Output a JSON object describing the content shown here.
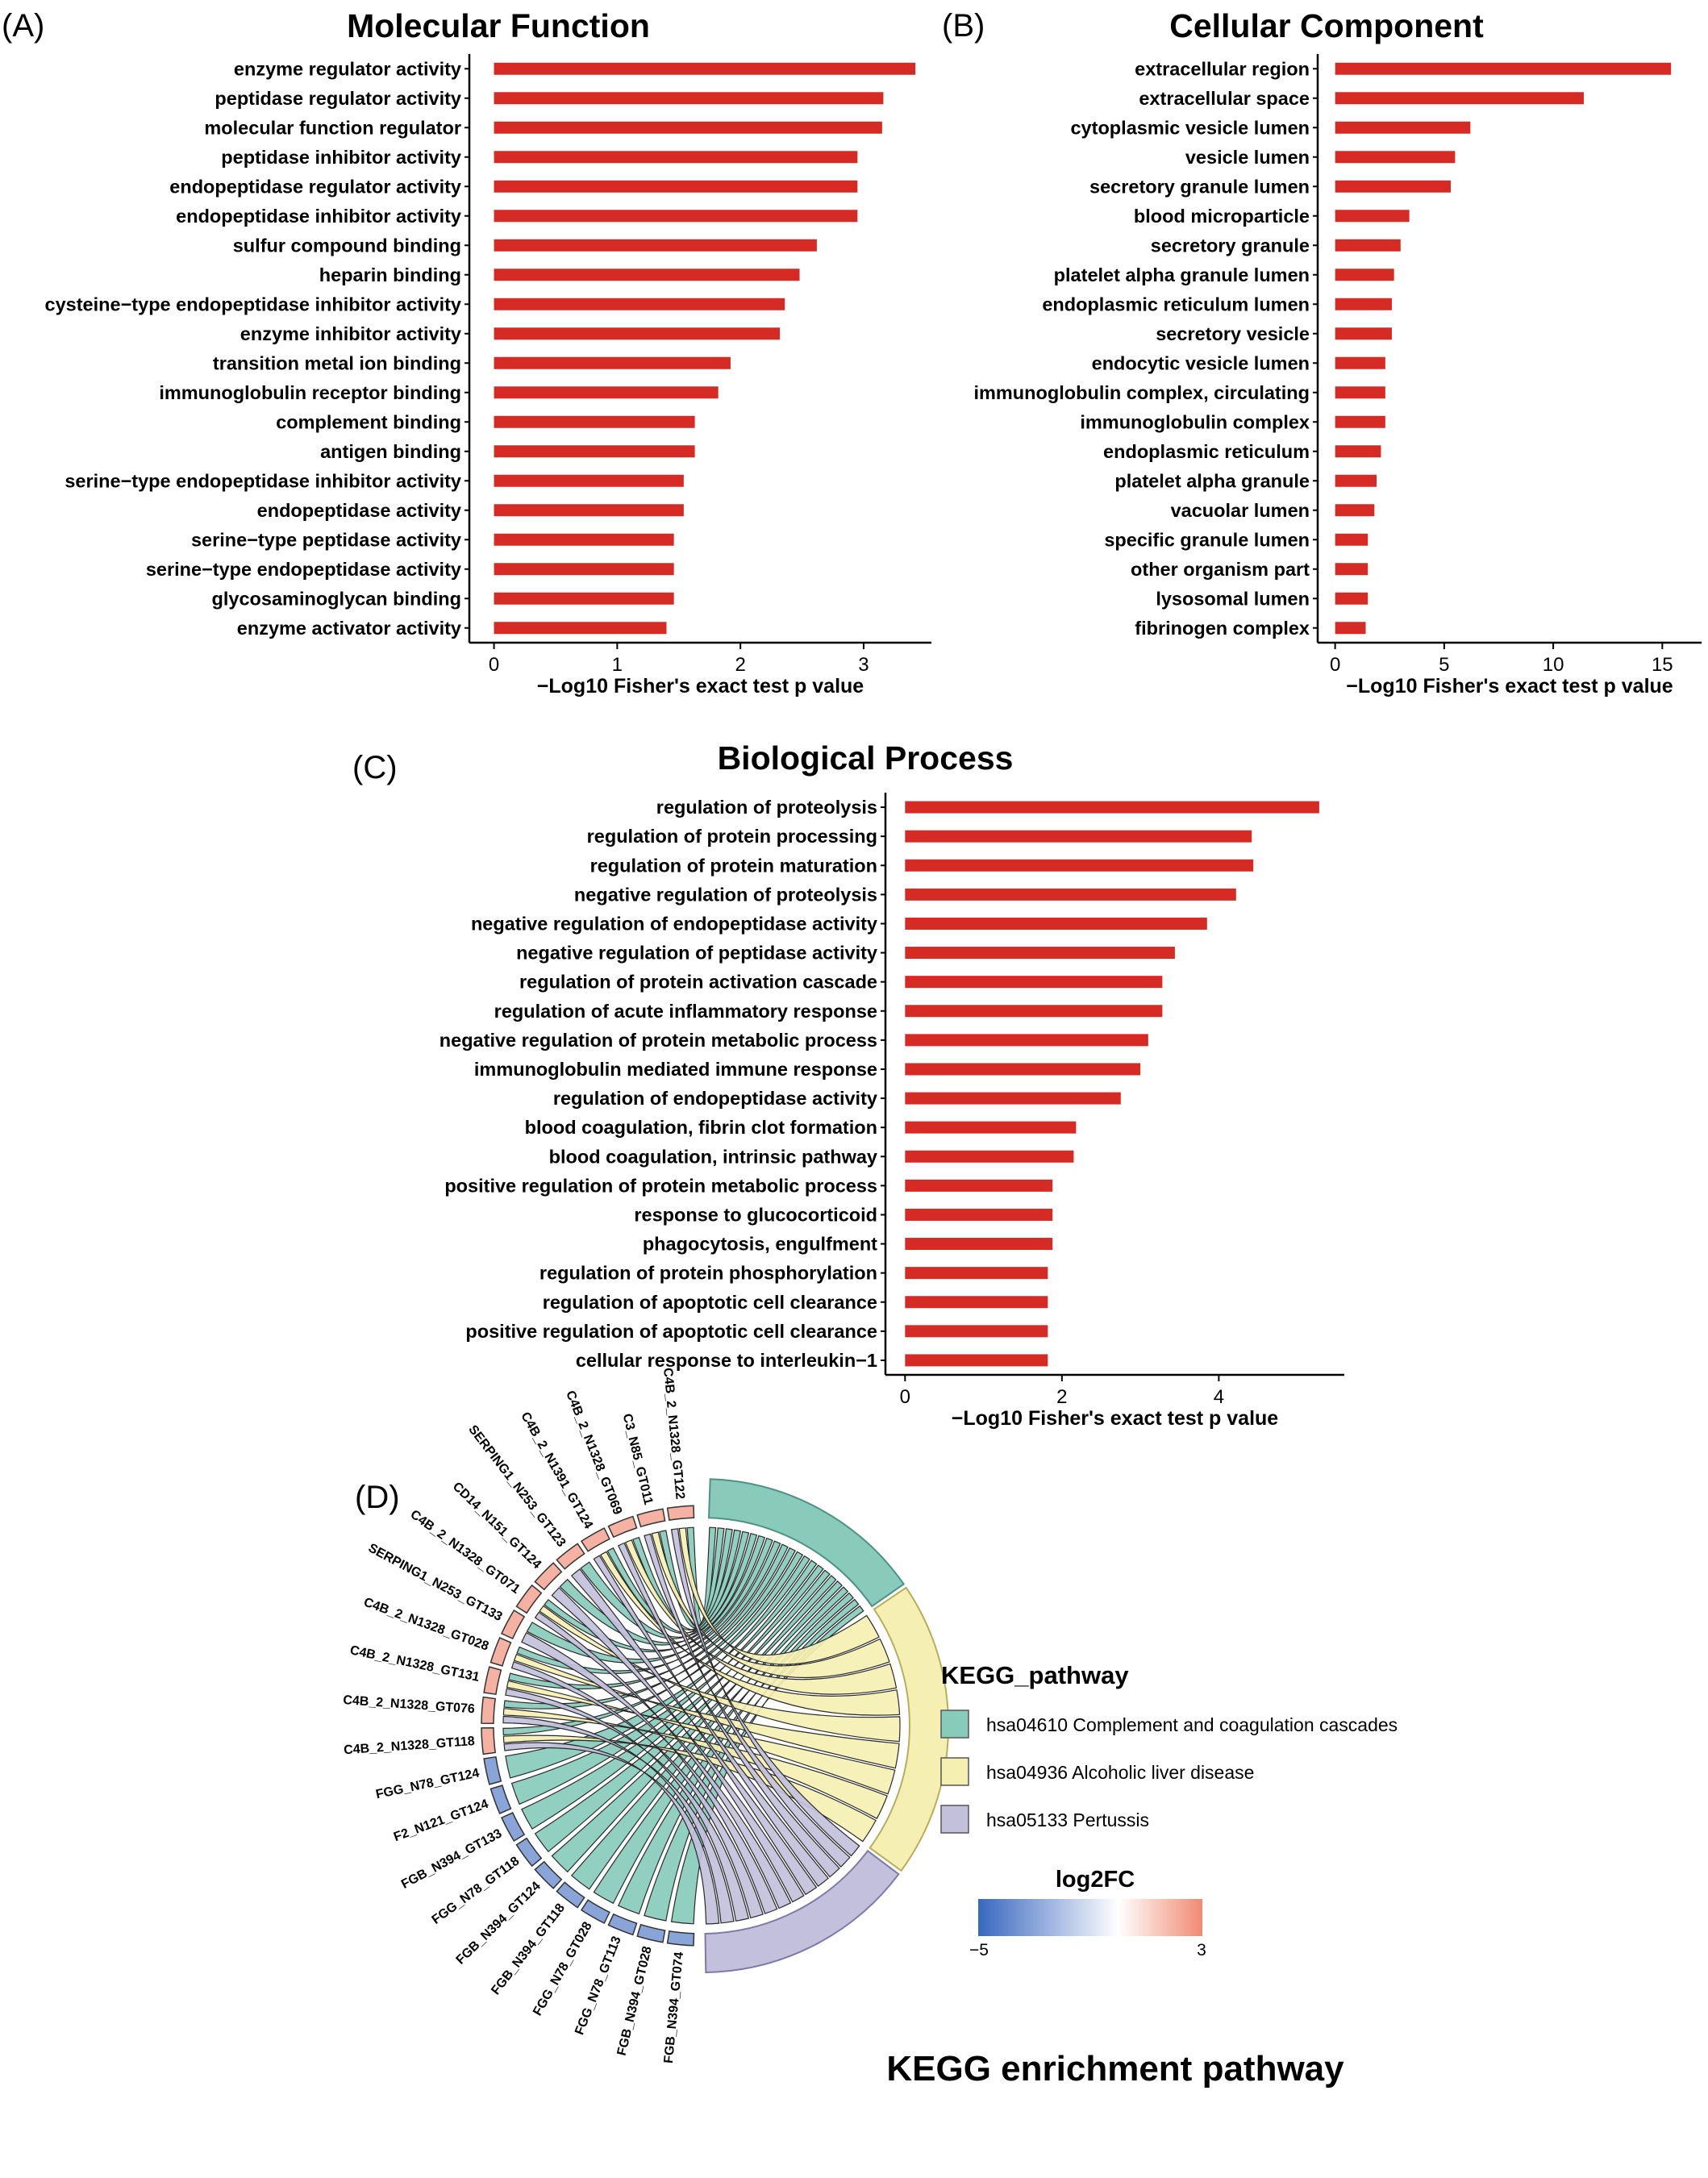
{
  "panels": {
    "a": "(A)",
    "b": "(B)",
    "c": "(C)",
    "d": "(D)"
  },
  "colors": {
    "bar": "#d52b24",
    "complement": "#88cbbb",
    "alcoholic": "#f5f0b2",
    "pertussis": "#c3c0dc",
    "fc_low": "#3967c0",
    "fc_mid": "#ffffff",
    "fc_high": "#f08a72"
  },
  "chart_data": [
    {
      "type": "bar",
      "orientation": "horizontal",
      "title": "Molecular Function",
      "xlabel": "−Log10 Fisher's exact test p value",
      "xlim": [
        -0.2,
        3.55
      ],
      "xticks": [
        0,
        1,
        2,
        3
      ],
      "grid": false,
      "categories": [
        "enzyme regulator activity",
        "peptidase regulator activity",
        "molecular function regulator",
        "peptidase inhibitor activity",
        "endopeptidase regulator activity",
        "endopeptidase inhibitor activity",
        "sulfur compound binding",
        "heparin binding",
        "cysteine−type endopeptidase inhibitor activity",
        "enzyme inhibitor activity",
        "transition metal ion binding",
        "immunoglobulin receptor binding",
        "complement binding",
        "antigen binding",
        "serine−type endopeptidase inhibitor activity",
        "endopeptidase activity",
        "serine−type peptidase activity",
        "serine−type endopeptidase activity",
        "glycosaminoglycan binding",
        "enzyme activator activity"
      ],
      "values": [
        3.42,
        3.16,
        3.15,
        2.95,
        2.95,
        2.95,
        2.62,
        2.48,
        2.36,
        2.32,
        1.92,
        1.82,
        1.63,
        1.63,
        1.54,
        1.54,
        1.46,
        1.46,
        1.46,
        1.4
      ]
    },
    {
      "type": "bar",
      "orientation": "horizontal",
      "title": "Cellular Component",
      "xlabel": "−Log10 Fisher's exact test p value",
      "xlim": [
        -0.8,
        16.8
      ],
      "xticks": [
        0,
        5,
        10,
        15
      ],
      "grid": false,
      "categories": [
        "extracellular region",
        "extracellular space",
        "cytoplasmic vesicle lumen",
        "vesicle lumen",
        "secretory granule lumen",
        "blood microparticle",
        "secretory granule",
        "platelet alpha granule lumen",
        "endoplasmic reticulum lumen",
        "secretory vesicle",
        "endocytic vesicle lumen",
        "immunoglobulin complex, circulating",
        "immunoglobulin complex",
        "endoplasmic reticulum",
        "platelet alpha granule",
        "vacuolar lumen",
        "specific granule lumen",
        "other organism part",
        "lysosomal lumen",
        "fibrinogen complex"
      ],
      "values": [
        15.4,
        11.4,
        6.2,
        5.5,
        5.3,
        3.4,
        3.0,
        2.7,
        2.6,
        2.6,
        2.3,
        2.3,
        2.3,
        2.1,
        1.9,
        1.8,
        1.5,
        1.5,
        1.5,
        1.4
      ]
    },
    {
      "type": "bar",
      "orientation": "horizontal",
      "title": "Biological Process",
      "xlabel": "−Log10 Fisher's exact test p value",
      "xlim": [
        -0.25,
        5.6
      ],
      "xticks": [
        0,
        2,
        4
      ],
      "grid": false,
      "categories": [
        "regulation of proteolysis",
        "regulation of protein processing",
        "regulation of protein maturation",
        "negative regulation of proteolysis",
        "negative regulation of endopeptidase activity",
        "negative regulation of peptidase activity",
        "regulation of protein activation cascade",
        "regulation of acute inflammatory response",
        "negative regulation of protein metabolic process",
        "immunoglobulin mediated immune response",
        "regulation of endopeptidase activity",
        "blood coagulation, fibrin clot formation",
        "blood coagulation, intrinsic pathway",
        "positive regulation of protein metabolic process",
        "response to glucocorticoid",
        "phagocytosis, engulfment",
        "regulation of protein phosphorylation",
        "regulation of apoptotic cell clearance",
        "positive regulation of apoptotic cell clearance",
        "cellular response to interleukin−1"
      ],
      "values": [
        5.28,
        4.42,
        4.44,
        4.22,
        3.85,
        3.44,
        3.28,
        3.28,
        3.1,
        3.0,
        2.75,
        2.18,
        2.15,
        1.88,
        1.88,
        1.88,
        1.82,
        1.82,
        1.82,
        1.82
      ]
    },
    {
      "type": "chord",
      "title": "KEGG enrichment pathway",
      "genes": [
        "C4B_2_N1328_GT122",
        "C3_N85_GT011",
        "C4B_2_N1328_GT069",
        "C4B_2_N1391_GT124",
        "SERPING1_N253_GT123",
        "CD14_N151_GT124",
        "C4B_2_N1328_GT071",
        "SERPING1_N253_GT133",
        "C4B_2_N1328_GT028",
        "C4B_2_N1328_GT131",
        "C4B_2_N1328_GT076",
        "C4B_2_N1328_GT118",
        "FGG_N78_GT124",
        "F2_N121_GT124",
        "FGB_N394_GT133",
        "FGG_N78_GT118",
        "FGB_N394_GT124",
        "FGB_N394_GT118",
        "FGG_N78_GT028",
        "FGG_N78_GT113",
        "FGB_N394_GT028",
        "FGB_N394_GT074"
      ],
      "log2fc": [
        2.0,
        2.0,
        2.0,
        2.0,
        2.0,
        2.0,
        2.0,
        2.0,
        2.0,
        2.0,
        2.0,
        2.0,
        -3.0,
        -3.0,
        -3.0,
        -3.0,
        -3.0,
        -3.0,
        -3.0,
        -3.0,
        -3.0,
        -3.0
      ],
      "pathways": [
        {
          "id": "hsa04610",
          "label": "hsa04610 Complement and coagulation cascades",
          "genes": [
            0,
            1,
            2,
            3,
            4,
            5,
            6,
            7,
            8,
            9,
            10,
            11,
            12,
            13,
            14,
            15,
            16,
            17,
            18,
            19,
            20,
            21
          ]
        },
        {
          "id": "hsa04936",
          "label": "hsa04936 Alcoholic liver disease",
          "genes": [
            0,
            1,
            2,
            3,
            6,
            8,
            9,
            10,
            11
          ]
        },
        {
          "id": "hsa05133",
          "label": "hsa05133 Pertussis",
          "genes": [
            0,
            1,
            2,
            3,
            4,
            5,
            6,
            7,
            8,
            9,
            10,
            11
          ]
        }
      ],
      "legend_title": "KEGG_pathway",
      "legend_placement": "right",
      "colorbar": {
        "title": "log2FC",
        "min": -5,
        "max": 3,
        "min_label": "−5",
        "max_label": "3"
      }
    }
  ]
}
